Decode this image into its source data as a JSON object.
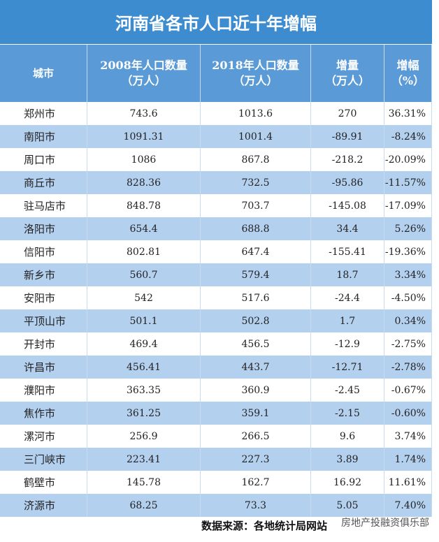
{
  "title": "河南省各市人口近十年增幅",
  "table": {
    "header": [
      [
        "城市"
      ],
      [
        "2008年人口数量",
        "（万人）"
      ],
      [
        "2018年人口数量",
        "（万人）"
      ],
      [
        "增量",
        "（万人）"
      ],
      [
        "增幅",
        "（%）"
      ]
    ],
    "rows": [
      [
        "郑州市",
        "743.6",
        "1013.6",
        "270",
        "36.31%"
      ],
      [
        "南阳市",
        "1091.31",
        "1001.4",
        "-89.91",
        "-8.24%"
      ],
      [
        "周口市",
        "1086",
        "867.8",
        "-218.2",
        "-20.09%"
      ],
      [
        "商丘市",
        "828.36",
        "732.5",
        "-95.86",
        "-11.57%"
      ],
      [
        "驻马店市",
        "848.78",
        "703.7",
        "-145.08",
        "-17.09%"
      ],
      [
        "洛阳市",
        "654.4",
        "688.8",
        "34.4",
        "5.26%"
      ],
      [
        "信阳市",
        "802.81",
        "647.4",
        "-155.41",
        "-19.36%"
      ],
      [
        "新乡市",
        "560.7",
        "579.4",
        "18.7",
        "3.34%"
      ],
      [
        "安阳市",
        "542",
        "517.6",
        "-24.4",
        "-4.50%"
      ],
      [
        "平顶山市",
        "501.1",
        "502.8",
        "1.7",
        "0.34%"
      ],
      [
        "开封市",
        "469.4",
        "456.5",
        "-12.9",
        "-2.75%"
      ],
      [
        "许昌市",
        "456.41",
        "443.7",
        "-12.71",
        "-2.78%"
      ],
      [
        "濮阳市",
        "363.35",
        "360.9",
        "-2.45",
        "-0.67%"
      ],
      [
        "焦作市",
        "361.25",
        "359.1",
        "-2.15",
        "-0.60%"
      ],
      [
        "漯河市",
        "256.9",
        "266.5",
        "9.6",
        "3.74%"
      ],
      [
        "三门峡市",
        "223.41",
        "227.3",
        "3.89",
        "1.74%"
      ],
      [
        "鹤壁市",
        "145.78",
        "162.7",
        "16.92",
        "11.61%"
      ],
      [
        "济源市",
        "68.25",
        "73.3",
        "5.05",
        "7.40%"
      ]
    ]
  },
  "source": "数据来源：各地统计局网站",
  "watermark": "房地产投融资俱乐部"
}
